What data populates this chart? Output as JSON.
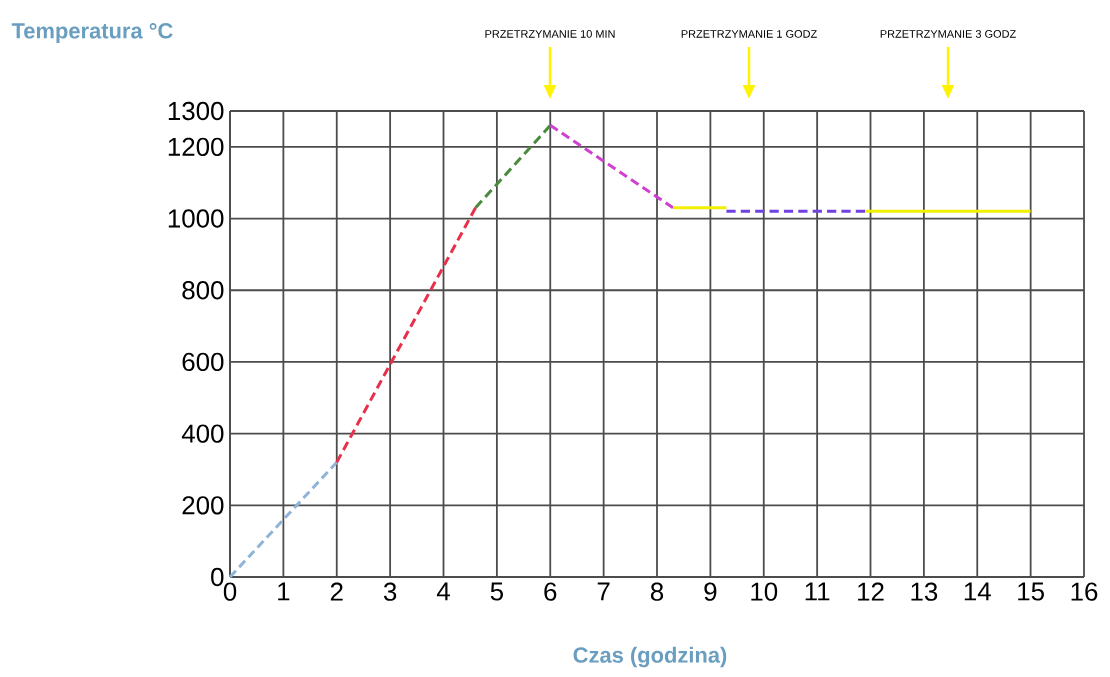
{
  "chart_data": {
    "type": "line",
    "xlabel": "Czas (godzina)",
    "ylabel": "Temperatura °C",
    "xlim": [
      0,
      16
    ],
    "ylim": [
      0,
      1300
    ],
    "xticks": [
      0,
      1,
      2,
      3,
      4,
      5,
      6,
      7,
      8,
      9,
      10,
      11,
      12,
      13,
      14,
      15,
      16
    ],
    "yticks": [
      0,
      200,
      400,
      600,
      800,
      1000,
      1200,
      1300
    ],
    "grid": true,
    "series": [
      {
        "color": "#8fb4d8",
        "line_style": "dashed",
        "x": [
          0,
          2
        ],
        "values": [
          0,
          320
        ]
      },
      {
        "color": "#e8304a",
        "line_style": "dashed",
        "x": [
          2,
          4.6
        ],
        "values": [
          320,
          1030
        ]
      },
      {
        "color": "#4a8a3c",
        "line_style": "dashed",
        "x": [
          4.6,
          6
        ],
        "values": [
          1030,
          1260
        ]
      },
      {
        "color": "#d040d0",
        "line_style": "dashed",
        "x": [
          6,
          8.3
        ],
        "values": [
          1260,
          1030
        ]
      },
      {
        "color": "#f0f000",
        "line_style": "solid",
        "x": [
          8.3,
          9.3
        ],
        "values": [
          1030,
          1030
        ]
      },
      {
        "color": "#7040e0",
        "line_style": "dashed",
        "x": [
          9.3,
          11.9
        ],
        "values": [
          1020,
          1020
        ]
      },
      {
        "color": "#f0f000",
        "line_style": "solid",
        "x": [
          11.9,
          15
        ],
        "values": [
          1020,
          1020
        ]
      }
    ],
    "annotations": [
      "PRZETRZYMANIE 10 MIN",
      "PRZETRZYMANIE 1 GODZ",
      "PRZETRZYMANIE 3 GODZ"
    ]
  }
}
